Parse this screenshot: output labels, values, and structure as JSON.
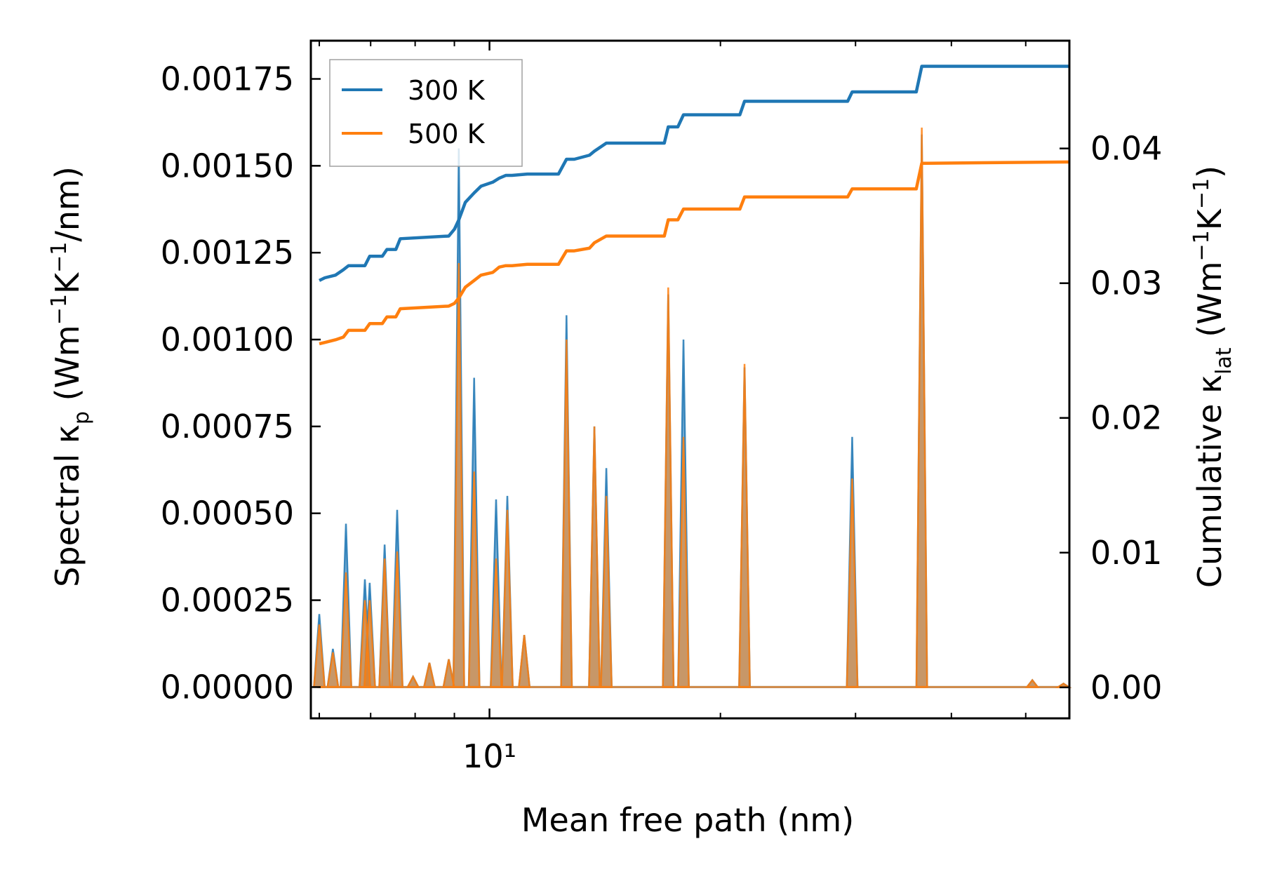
{
  "chart_data": {
    "type": "line",
    "title": "",
    "xlabel": "Mean free path (nm)",
    "ylabel_left": "Spectral κ_p (Wm⁻¹K⁻¹/nm)",
    "ylabel_right": "Cumulative κ_lat (Wm⁻¹K⁻¹)",
    "xscale": "log",
    "xlim": [
      5.85,
      57
    ],
    "ylim_left": [
      -9e-05,
      0.00186
    ],
    "ylim_right": [
      -0.0023,
      0.048
    ],
    "x_major_ticks": [
      10
    ],
    "x_major_tick_labels": [
      "10¹"
    ],
    "x_minor_ticks": [
      6,
      7,
      8,
      9,
      20,
      30,
      40,
      50
    ],
    "y_left_ticks": [
      0,
      0.00025,
      0.0005,
      0.00075,
      0.001,
      0.00125,
      0.0015,
      0.00175
    ],
    "y_left_tick_labels": [
      "0.00000",
      "0.00025",
      "0.00050",
      "0.00075",
      "0.00100",
      "0.00125",
      "0.00150",
      "0.00175"
    ],
    "y_right_ticks": [
      0,
      0.01,
      0.02,
      0.03,
      0.04
    ],
    "y_right_tick_labels": [
      "0.00",
      "0.01",
      "0.02",
      "0.03",
      "0.04"
    ],
    "legend": {
      "position": "top-left",
      "entries": [
        "300 K",
        "500 K"
      ]
    },
    "colors": {
      "300K": "#1f77b4",
      "500K": "#ff7f0e",
      "overlap_fill": "#b98c63"
    },
    "spectral_series": [
      {
        "name": "300 K",
        "axis": "left",
        "peaks": [
          {
            "x": 6.0,
            "y": 0.00021
          },
          {
            "x": 6.25,
            "y": 0.00011
          },
          {
            "x": 6.5,
            "y": 0.00047
          },
          {
            "x": 6.88,
            "y": 0.00031
          },
          {
            "x": 6.98,
            "y": 0.0003
          },
          {
            "x": 7.3,
            "y": 0.00041
          },
          {
            "x": 7.58,
            "y": 0.00051
          },
          {
            "x": 7.95,
            "y": 3e-05
          },
          {
            "x": 8.35,
            "y": 7e-05
          },
          {
            "x": 8.85,
            "y": 8e-05
          },
          {
            "x": 9.12,
            "y": 0.00155
          },
          {
            "x": 9.55,
            "y": 0.00089
          },
          {
            "x": 10.2,
            "y": 0.00054
          },
          {
            "x": 10.55,
            "y": 0.00055
          },
          {
            "x": 11.1,
            "y": 0.00015
          },
          {
            "x": 12.6,
            "y": 0.00107
          },
          {
            "x": 13.7,
            "y": 0.00075
          },
          {
            "x": 14.2,
            "y": 0.00063
          },
          {
            "x": 17.1,
            "y": 0.00113
          },
          {
            "x": 17.9,
            "y": 0.001
          },
          {
            "x": 21.5,
            "y": 0.00092
          },
          {
            "x": 29.7,
            "y": 0.00072
          },
          {
            "x": 36.6,
            "y": 0.00159
          },
          {
            "x": 51.0,
            "y": 2e-05
          },
          {
            "x": 56.0,
            "y": 1e-05
          }
        ]
      },
      {
        "name": "500 K",
        "axis": "left",
        "peaks": [
          {
            "x": 6.0,
            "y": 0.00018
          },
          {
            "x": 6.25,
            "y": 0.0001
          },
          {
            "x": 6.5,
            "y": 0.00033
          },
          {
            "x": 6.88,
            "y": 0.00025
          },
          {
            "x": 6.98,
            "y": 0.00025
          },
          {
            "x": 7.3,
            "y": 0.00037
          },
          {
            "x": 7.58,
            "y": 0.00039
          },
          {
            "x": 7.95,
            "y": 3e-05
          },
          {
            "x": 8.35,
            "y": 7e-05
          },
          {
            "x": 8.85,
            "y": 8e-05
          },
          {
            "x": 9.12,
            "y": 0.00122
          },
          {
            "x": 9.55,
            "y": 0.00062
          },
          {
            "x": 10.2,
            "y": 0.00037
          },
          {
            "x": 10.55,
            "y": 0.00051
          },
          {
            "x": 11.1,
            "y": 0.00015
          },
          {
            "x": 12.6,
            "y": 0.001
          },
          {
            "x": 13.7,
            "y": 0.00075
          },
          {
            "x": 14.2,
            "y": 0.00055
          },
          {
            "x": 17.1,
            "y": 0.00115
          },
          {
            "x": 17.9,
            "y": 0.00072
          },
          {
            "x": 21.5,
            "y": 0.00093
          },
          {
            "x": 29.7,
            "y": 0.0006
          },
          {
            "x": 36.6,
            "y": 0.00161
          },
          {
            "x": 51.0,
            "y": 2e-05
          },
          {
            "x": 56.0,
            "y": 1e-05
          }
        ]
      }
    ],
    "cumulative_series": [
      {
        "name": "300 K",
        "axis": "right",
        "x": [
          6.0,
          6.1,
          6.3,
          6.45,
          6.55,
          6.88,
          6.98,
          7.25,
          7.35,
          7.55,
          7.65,
          8.85,
          9.0,
          9.12,
          9.3,
          9.55,
          9.75,
          10.1,
          10.3,
          10.5,
          10.7,
          11.2,
          12.3,
          12.6,
          12.9,
          13.5,
          13.7,
          14.2,
          14.6,
          16.9,
          17.1,
          17.6,
          17.9,
          18.2,
          21.2,
          21.5,
          22.0,
          29.3,
          29.7,
          30.2,
          36.0,
          36.6,
          37.2,
          57.0
        ],
        "y": [
          0.0302,
          0.0304,
          0.0306,
          0.031,
          0.0313,
          0.0313,
          0.032,
          0.032,
          0.0325,
          0.0325,
          0.0333,
          0.0335,
          0.034,
          0.0347,
          0.036,
          0.0367,
          0.0372,
          0.0375,
          0.0378,
          0.038,
          0.038,
          0.0381,
          0.0381,
          0.0392,
          0.0392,
          0.0395,
          0.0398,
          0.0404,
          0.0404,
          0.0404,
          0.0416,
          0.0416,
          0.0425,
          0.0425,
          0.0425,
          0.0435,
          0.0435,
          0.0435,
          0.0442,
          0.0442,
          0.0442,
          0.0461,
          0.0461,
          0.0461
        ]
      },
      {
        "name": "500 K",
        "axis": "right",
        "x": [
          6.0,
          6.1,
          6.3,
          6.45,
          6.55,
          6.88,
          6.98,
          7.25,
          7.35,
          7.55,
          7.65,
          8.85,
          9.0,
          9.12,
          9.3,
          9.55,
          9.75,
          10.1,
          10.3,
          10.5,
          10.7,
          11.2,
          12.3,
          12.6,
          12.9,
          13.5,
          13.7,
          14.2,
          14.6,
          16.9,
          17.1,
          17.6,
          17.9,
          18.2,
          21.2,
          21.5,
          22.0,
          29.3,
          29.7,
          30.2,
          36.0,
          36.6,
          37.2,
          57.0
        ],
        "y": [
          0.0255,
          0.0256,
          0.0258,
          0.026,
          0.0265,
          0.0265,
          0.027,
          0.027,
          0.0275,
          0.0275,
          0.0281,
          0.0283,
          0.0285,
          0.0289,
          0.0297,
          0.0302,
          0.0306,
          0.0308,
          0.0312,
          0.0313,
          0.0313,
          0.0314,
          0.0314,
          0.0324,
          0.0324,
          0.0326,
          0.033,
          0.0335,
          0.0335,
          0.0335,
          0.0347,
          0.0347,
          0.0355,
          0.0355,
          0.0355,
          0.0364,
          0.0364,
          0.0364,
          0.037,
          0.037,
          0.037,
          0.0389,
          0.0389,
          0.039
        ]
      }
    ]
  }
}
